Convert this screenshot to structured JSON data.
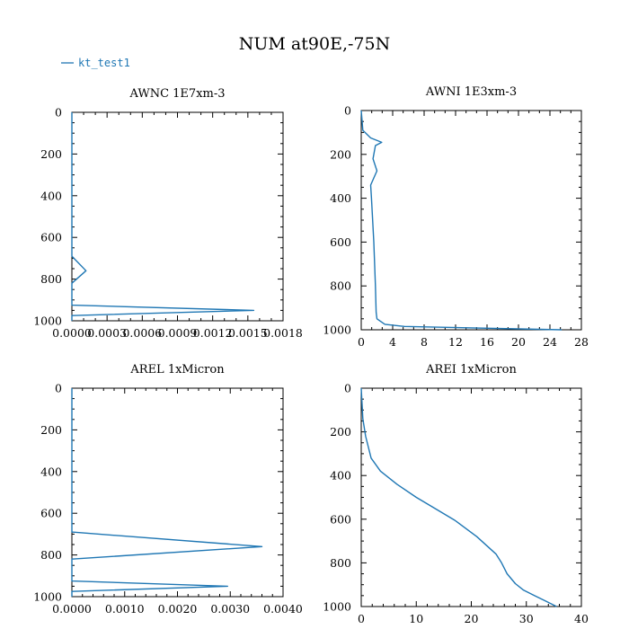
{
  "page": {
    "title": "NUM at90E,-75N",
    "legend_label": "kt_test1",
    "series_color": "#1f77b4"
  },
  "chart_data": [
    {
      "type": "line",
      "title": "AWNC  1E7xm-3",
      "xlim": [
        0,
        0.0018
      ],
      "ylim": [
        1000,
        0
      ],
      "xticks": [
        0.0,
        0.0003,
        0.0006,
        0.0009,
        0.0012,
        0.0015,
        0.0018
      ],
      "xtick_labels": [
        "0.0000",
        "0.0003",
        "0.0006",
        "0.0009",
        "0.0012",
        "0.0015",
        "0.0018"
      ],
      "yticks": [
        0,
        200,
        400,
        600,
        800,
        1000
      ],
      "ytick_labels": [
        "0",
        "200",
        "400",
        "600",
        "800",
        "1000"
      ],
      "series": [
        {
          "name": "kt_test1",
          "x": [
            0,
            0,
            0.00012,
            0,
            0,
            0,
            0.00155,
            0,
            0
          ],
          "y": [
            0,
            690,
            760,
            820,
            840,
            925,
            950,
            975,
            1000
          ]
        }
      ]
    },
    {
      "type": "line",
      "title": "AWNI  1E3xm-3",
      "xlim": [
        0,
        28
      ],
      "ylim": [
        1000,
        0
      ],
      "xticks": [
        0,
        4,
        8,
        12,
        16,
        20,
        24,
        28
      ],
      "xtick_labels": [
        "0",
        "4",
        "8",
        "12",
        "16",
        "20",
        "24",
        "28"
      ],
      "yticks": [
        0,
        200,
        400,
        600,
        800,
        1000
      ],
      "ytick_labels": [
        "0",
        "200",
        "400",
        "600",
        "800",
        "1000"
      ],
      "series": [
        {
          "name": "kt_test1",
          "x": [
            0,
            0.2,
            1.2,
            2.6,
            1.8,
            1.5,
            2.0,
            1.2,
            1.3,
            1.6,
            1.8,
            1.9,
            2.0,
            3.0,
            5.5,
            25.5
          ],
          "y": [
            0,
            90,
            125,
            145,
            160,
            220,
            275,
            340,
            400,
            600,
            800,
            920,
            950,
            975,
            985,
            1000
          ]
        }
      ]
    },
    {
      "type": "line",
      "title": "AREL  1xMicron",
      "xlim": [
        0,
        0.004
      ],
      "ylim": [
        1000,
        0
      ],
      "xticks": [
        0,
        0.001,
        0.002,
        0.003,
        0.004
      ],
      "xtick_labels": [
        "0.0000",
        "0.0010",
        "0.0020",
        "0.0030",
        "0.0040"
      ],
      "yticks": [
        0,
        200,
        400,
        600,
        800,
        1000
      ],
      "ytick_labels": [
        "0",
        "200",
        "400",
        "600",
        "800",
        "1000"
      ],
      "series": [
        {
          "name": "kt_test1",
          "x": [
            0,
            0,
            0.0036,
            0,
            0,
            0,
            0.00295,
            0,
            0
          ],
          "y": [
            0,
            690,
            760,
            820,
            840,
            925,
            950,
            975,
            1000
          ]
        }
      ]
    },
    {
      "type": "line",
      "title": "AREI  1xMicron",
      "xlim": [
        0,
        40
      ],
      "ylim": [
        1000,
        0
      ],
      "xticks": [
        0,
        10,
        20,
        30,
        40
      ],
      "xtick_labels": [
        "0",
        "10",
        "20",
        "30",
        "40"
      ],
      "yticks": [
        0,
        200,
        400,
        600,
        800,
        1000
      ],
      "ytick_labels": [
        "0",
        "200",
        "400",
        "600",
        "800",
        "1000"
      ],
      "series": [
        {
          "name": "kt_test1",
          "x": [
            0,
            0.3,
            0.8,
            1.8,
            3.5,
            6.5,
            10,
            13,
            17,
            21,
            24.5,
            25.5,
            26.5,
            28,
            29.5,
            31.5,
            33.5,
            35.5
          ],
          "y": [
            0,
            140,
            220,
            320,
            380,
            440,
            500,
            545,
            605,
            680,
            760,
            800,
            850,
            895,
            925,
            950,
            975,
            1000
          ]
        }
      ]
    }
  ]
}
